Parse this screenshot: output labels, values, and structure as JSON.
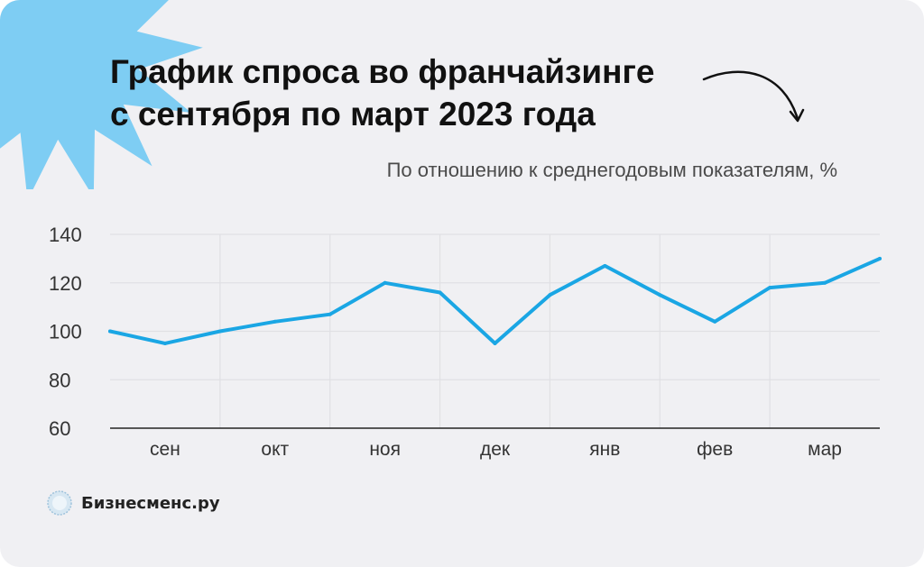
{
  "header": {
    "title_line1": "График спроса во франчайзинге",
    "title_line2": "с сентября по март 2023 года",
    "subtitle": "По отношению к среднегодовым показателям, %"
  },
  "colors": {
    "background": "#f0f0f3",
    "burst": "#7ecdf3",
    "line": "#1aa6e4",
    "grid": "#e0e0e4",
    "axis": "#222222"
  },
  "chart_data": {
    "type": "line",
    "title": "График спроса во франчайзинге с сентября по март 2023 года",
    "subtitle": "По отношению к среднегодовым показателям, %",
    "x_tick_labels": [
      "сен",
      "окт",
      "ноя",
      "дек",
      "янв",
      "фев",
      "мар"
    ],
    "y_ticks": [
      60,
      80,
      100,
      120,
      140
    ],
    "ylim": [
      60,
      140
    ],
    "grid": true,
    "x_index_range": [
      0,
      14
    ],
    "series": [
      {
        "x": [
          0,
          1,
          2,
          3,
          4,
          5,
          6,
          7,
          8,
          9,
          10,
          11,
          12,
          13,
          14
        ],
        "values": [
          100,
          95,
          100,
          104,
          107,
          120,
          116,
          95,
          115,
          127,
          115,
          104,
          118,
          120,
          130
        ]
      }
    ]
  },
  "brand": {
    "name": "Бизнесменс.ру",
    "logo_icon": "badge-logo-icon"
  }
}
